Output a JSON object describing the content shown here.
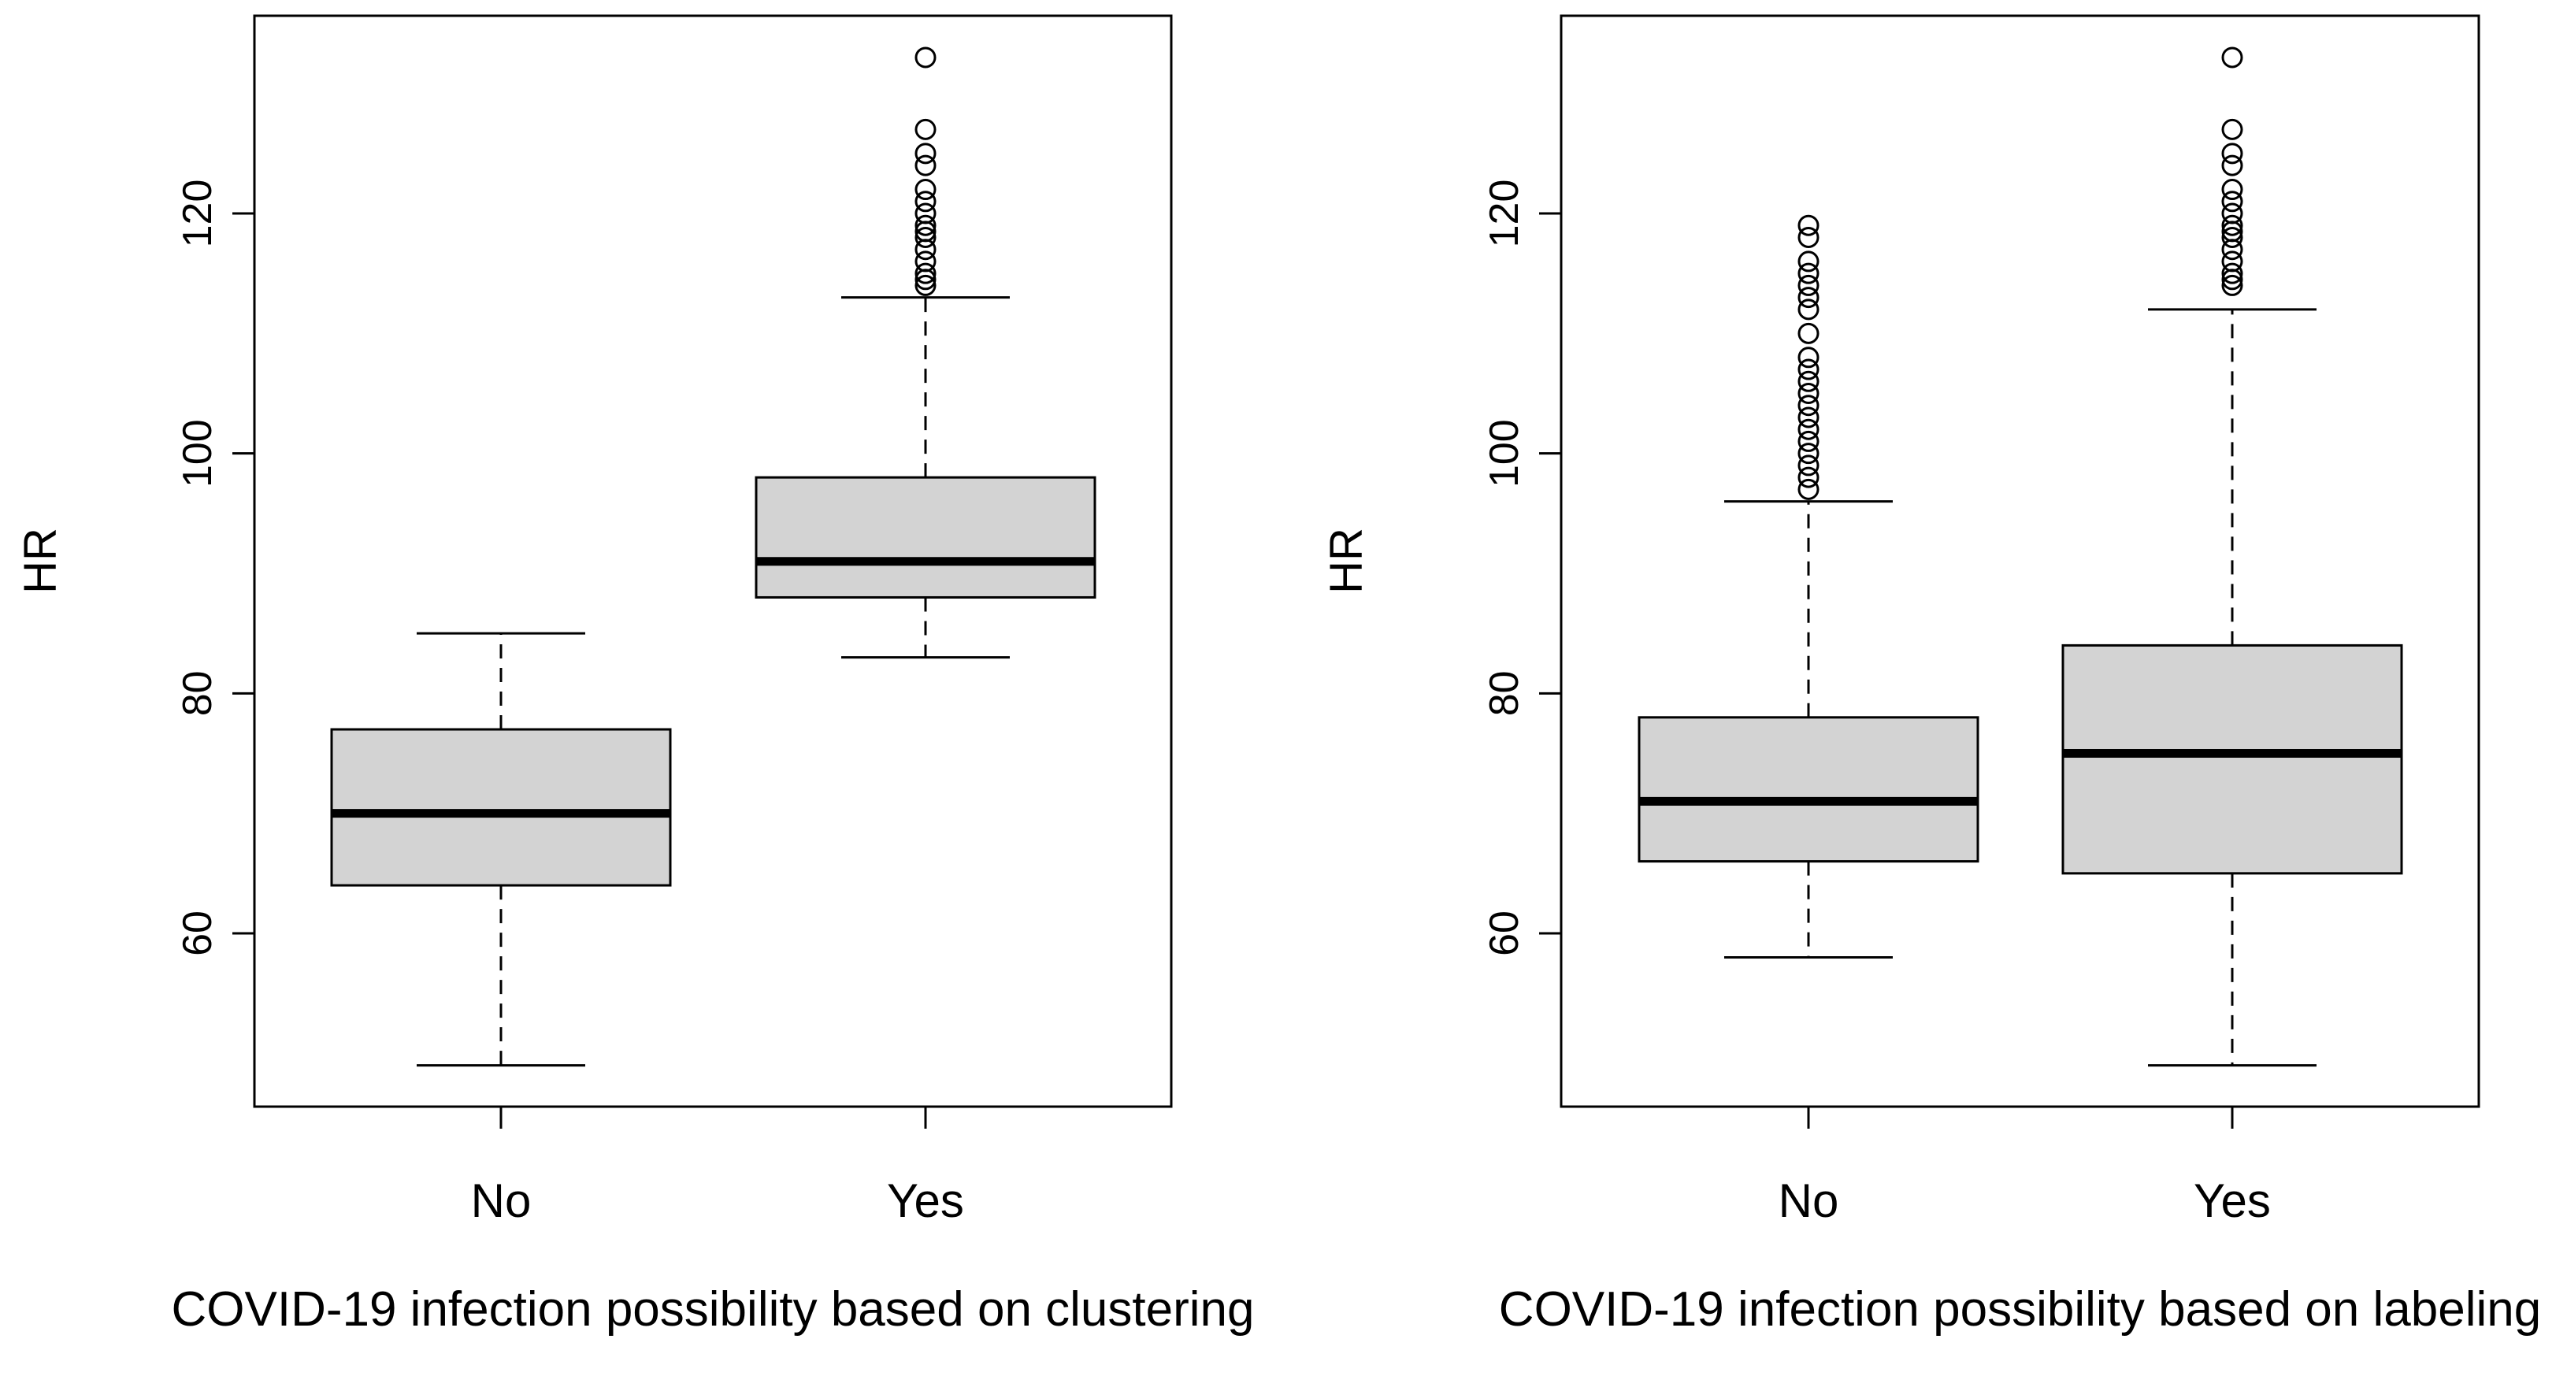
{
  "chart_data": [
    {
      "type": "boxplot",
      "title": "",
      "xlabel": "COVID-19 infection possibility based on clustering",
      "ylabel": "HR",
      "ylim": [
        47,
        135
      ],
      "yticks": [
        60,
        80,
        100,
        120
      ],
      "categories": [
        "No",
        "Yes"
      ],
      "boxes": [
        {
          "name": "No",
          "whisker_low": 49,
          "q1": 64,
          "median": 70,
          "q3": 77,
          "whisker_high": 85,
          "outliers": []
        },
        {
          "name": "Yes",
          "whisker_low": 83,
          "q1": 88,
          "median": 91,
          "q3": 98,
          "whisker_high": 113,
          "outliers": [
            114,
            114.5,
            115,
            116,
            117,
            118,
            118.5,
            119,
            120,
            121,
            122,
            124,
            125,
            127,
            133
          ]
        }
      ]
    },
    {
      "type": "boxplot",
      "title": "",
      "xlabel": "COVID-19 infection possibility based on labeling",
      "ylabel": "HR",
      "ylim": [
        47,
        135
      ],
      "yticks": [
        60,
        80,
        100,
        120
      ],
      "categories": [
        "No",
        "Yes"
      ],
      "boxes": [
        {
          "name": "No",
          "whisker_low": 58,
          "q1": 66,
          "median": 71,
          "q3": 78,
          "whisker_high": 96,
          "outliers": [
            97,
            98,
            99,
            100,
            101,
            102,
            103,
            104,
            105,
            106,
            107,
            108,
            110,
            112,
            113,
            114,
            115,
            116,
            118,
            119
          ]
        },
        {
          "name": "Yes",
          "whisker_low": 49,
          "q1": 65,
          "median": 75,
          "q3": 84,
          "whisker_high": 112,
          "outliers": [
            114,
            114.5,
            115,
            116,
            117,
            118,
            118.5,
            119,
            120,
            121,
            122,
            124,
            125,
            127,
            133
          ]
        }
      ]
    }
  ],
  "colors": {
    "box_fill": "#d3d3d3",
    "stroke": "#000000",
    "background": "#ffffff"
  }
}
